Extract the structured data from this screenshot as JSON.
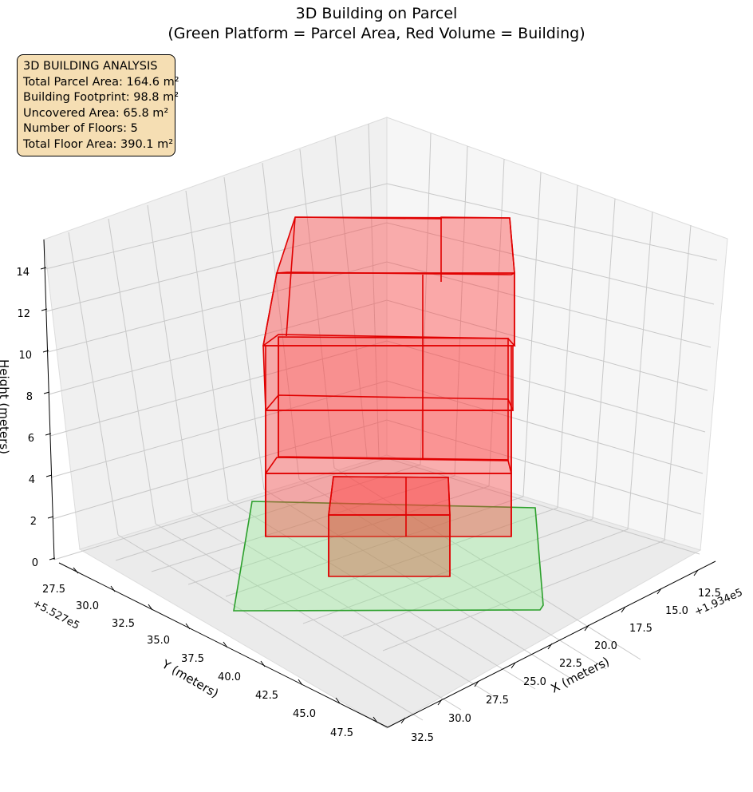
{
  "title": {
    "line1": "3D Building on Parcel",
    "line2": "(Green Platform = Parcel Area, Red Volume = Building)"
  },
  "info_box": {
    "heading": "3D BUILDING ANALYSIS",
    "lines": [
      "Total Parcel Area: 164.6 m²",
      "Building Footprint: 98.8 m²",
      "Uncovered Area: 65.8 m²",
      "Number of Floors: 5",
      "Total Floor Area: 390.1 m²"
    ]
  },
  "colors": {
    "parcel_fill": "#90ee90",
    "parcel_edge": "#2ca02c",
    "building_fill": "#ff3b3b",
    "building_edge": "#e00000",
    "pane": "#f2f2f2",
    "grid": "#bfbfbf"
  },
  "chart_data": {
    "type": "3d-volume",
    "x_axis": {
      "label": "X (meters)",
      "offset_text": "+1.934e5",
      "ticks": [
        "12.5",
        "15.0",
        "17.5",
        "20.0",
        "22.5",
        "25.0",
        "27.5",
        "30.0",
        "32.5"
      ]
    },
    "y_axis": {
      "label": "Y (meters)",
      "offset_text": "+5.527e5",
      "ticks": [
        "27.5",
        "30.0",
        "32.5",
        "35.0",
        "37.5",
        "40.0",
        "42.5",
        "45.0",
        "47.5"
      ]
    },
    "z_axis": {
      "label": "Height (meters)",
      "ticks": [
        "0",
        "2",
        "4",
        "6",
        "8",
        "10",
        "12",
        "14"
      ]
    },
    "parcel": {
      "label": "Parcel Area",
      "height": 0
    },
    "building": {
      "label": "Building",
      "floors": 5,
      "floor_levels": [
        0,
        3,
        6,
        9,
        12,
        15
      ]
    }
  }
}
